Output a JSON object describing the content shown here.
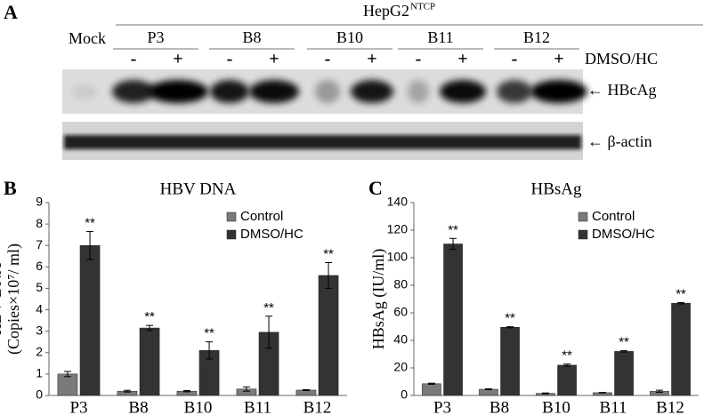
{
  "panel_a": {
    "letter": "A",
    "cell_line": "HepG2",
    "superscript": "NTCP",
    "mock": "Mock",
    "groups": [
      "P3",
      "B8",
      "B10",
      "B11",
      "B12"
    ],
    "treatments": [
      "-",
      "+",
      "-",
      "+",
      "-",
      "+",
      "-",
      "+",
      "-",
      "+"
    ],
    "treatment_label": "DMSO/HC",
    "bands": [
      "← HBcAg",
      "← β-actin"
    ]
  },
  "chart_data": [
    {
      "type": "bar",
      "letter": "B",
      "title": "HBV DNA",
      "ylabel": [
        "HBV  DNA",
        "(Copies×10⁷/ ml)"
      ],
      "categories": [
        "P3",
        "B8",
        "B10",
        "B11",
        "B12"
      ],
      "series": [
        {
          "name": "Control",
          "color": "#7a7a7a",
          "values": [
            1.0,
            0.2,
            0.2,
            0.3,
            0.25
          ],
          "errors": [
            0.12,
            0.04,
            0.03,
            0.1,
            0.02
          ]
        },
        {
          "name": "DMSO/HC",
          "color": "#333333",
          "values": [
            7.0,
            3.15,
            2.1,
            2.95,
            5.6
          ],
          "errors": [
            0.65,
            0.12,
            0.4,
            0.75,
            0.6
          ]
        }
      ],
      "annotations": [
        "**",
        "**",
        "**",
        "**",
        "**"
      ],
      "ylim": [
        0,
        9
      ],
      "yticks": [
        0,
        1,
        2,
        3,
        4,
        5,
        6,
        7,
        8,
        9
      ],
      "legend": "upper right"
    },
    {
      "type": "bar",
      "letter": "C",
      "title": "HBsAg",
      "ylabel": [
        "HBsAg (IU/ml)"
      ],
      "categories": [
        "P3",
        "B8",
        "B10",
        "B11",
        "B12"
      ],
      "series": [
        {
          "name": "Control",
          "color": "#7a7a7a",
          "values": [
            8.5,
            4.5,
            1.5,
            2.0,
            3.0
          ],
          "errors": [
            0.4,
            0.3,
            0.3,
            0.2,
            0.8
          ]
        },
        {
          "name": "DMSO/HC",
          "color": "#333333",
          "values": [
            110,
            49.5,
            22,
            32,
            67
          ],
          "errors": [
            4,
            0.4,
            0.8,
            0.5,
            0.5
          ]
        }
      ],
      "annotations": [
        "**",
        "**",
        "**",
        "**",
        "**"
      ],
      "ylim": [
        0,
        140
      ],
      "yticks": [
        0,
        20,
        40,
        60,
        80,
        100,
        120,
        140
      ],
      "legend": "upper right"
    }
  ]
}
